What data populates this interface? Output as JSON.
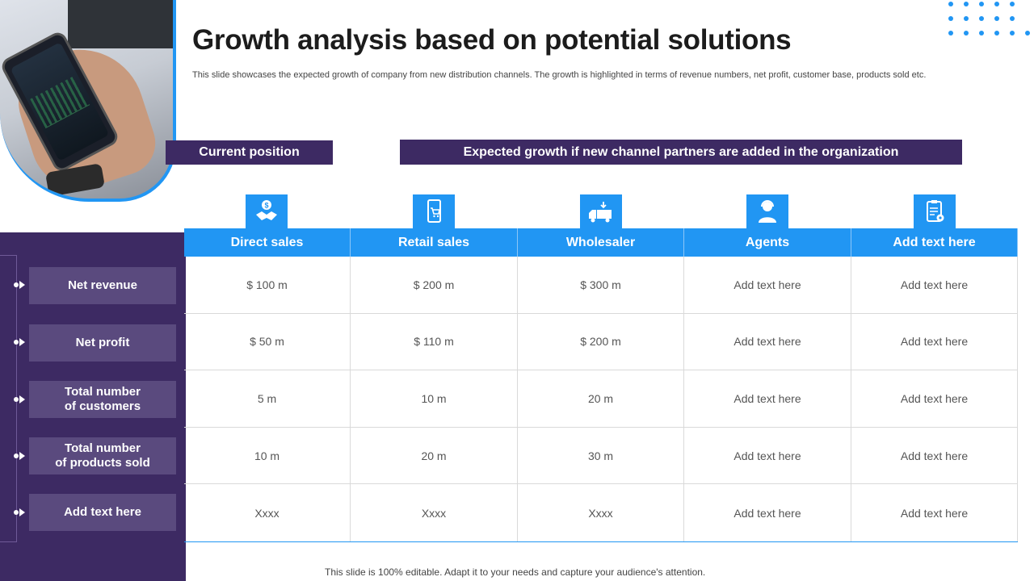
{
  "header": {
    "title": "Growth analysis based on potential solutions",
    "subtitle": "This slide showcases the expected growth of company from new distribution channels. The growth is highlighted in terms of revenue numbers, net profit, customer base, products sold etc."
  },
  "banners": {
    "current": "Current position",
    "expected": "Expected growth if new channel partners are added in the organization"
  },
  "columns": [
    {
      "label": "Direct sales",
      "icon": "handshake-dollar-icon"
    },
    {
      "label": "Retail sales",
      "icon": "mobile-shopping-cart-icon"
    },
    {
      "label": "Wholesaler",
      "icon": "delivery-truck-icon"
    },
    {
      "label": "Agents",
      "icon": "agent-person-icon"
    },
    {
      "label": "Add text here",
      "icon": "clipboard-gear-icon"
    }
  ],
  "rows": [
    {
      "label": "Net revenue",
      "values": [
        "$ 100 m",
        "$ 200 m",
        "$ 300 m",
        "Add text here",
        "Add text here"
      ]
    },
    {
      "label": "Net profit",
      "values": [
        "$ 50 m",
        "$ 110 m",
        "$ 200 m",
        "Add text here",
        "Add text here"
      ]
    },
    {
      "label": "Total number\nof customers",
      "values": [
        "5 m",
        "10 m",
        "20 m",
        "Add text here",
        "Add text here"
      ]
    },
    {
      "label": "Total number\nof products sold",
      "values": [
        "10 m",
        "20 m",
        "30 m",
        "Add text here",
        "Add text here"
      ]
    },
    {
      "label": "Add text here",
      "values": [
        "Xxxx",
        "Xxxx",
        "Xxxx",
        "Add text here",
        "Add text here"
      ]
    }
  ],
  "footer": "This slide is 100% editable. Adapt it to your needs and capture your audience's attention.",
  "colors": {
    "accent": "#2196f3",
    "purple": "#3d2a63",
    "label_bg": "#5a4a7e"
  }
}
